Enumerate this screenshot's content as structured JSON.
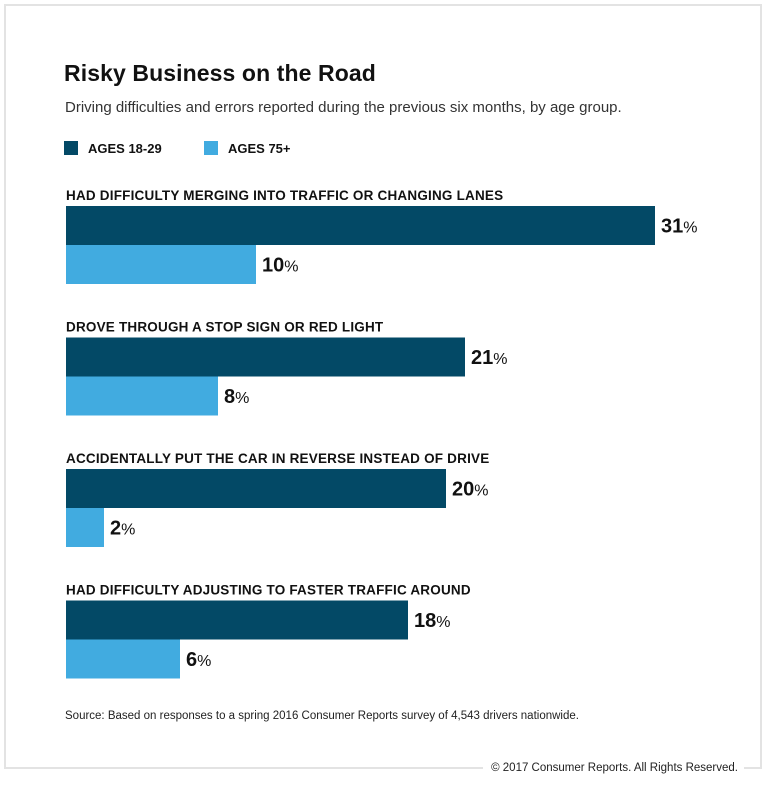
{
  "title": "Risky Business on the Road",
  "subtitle": "Driving difficulties and errors reported during the previous six months, by age group.",
  "source": "Source: Based on responses to a spring 2016 Consumer Reports survey of 4,543 drivers nationwide.",
  "copyright": "© 2017 Consumer Reports. All Rights Reserved.",
  "colors": {
    "series_18_29": "#034966",
    "series_75_plus": "#41abe0"
  },
  "chart_data": {
    "type": "bar",
    "orientation": "horizontal",
    "title": "Risky Business on the Road",
    "subtitle": "Driving difficulties and errors reported during the previous six months, by age group.",
    "categories": [
      "HAD DIFFICULTY MERGING INTO TRAFFIC OR CHANGING LANES",
      "DROVE THROUGH A STOP SIGN OR RED LIGHT",
      "ACCIDENTALLY PUT THE CAR IN REVERSE INSTEAD OF DRIVE",
      "HAD DIFFICULTY ADJUSTING TO FASTER TRAFFIC AROUND"
    ],
    "series": [
      {
        "name": "AGES 18-29",
        "values": [
          31,
          21,
          20,
          18
        ]
      },
      {
        "name": "AGES 75+",
        "values": [
          10,
          8,
          2,
          6
        ]
      }
    ],
    "value_suffix": "%",
    "legend": "top-left",
    "grid": false
  }
}
